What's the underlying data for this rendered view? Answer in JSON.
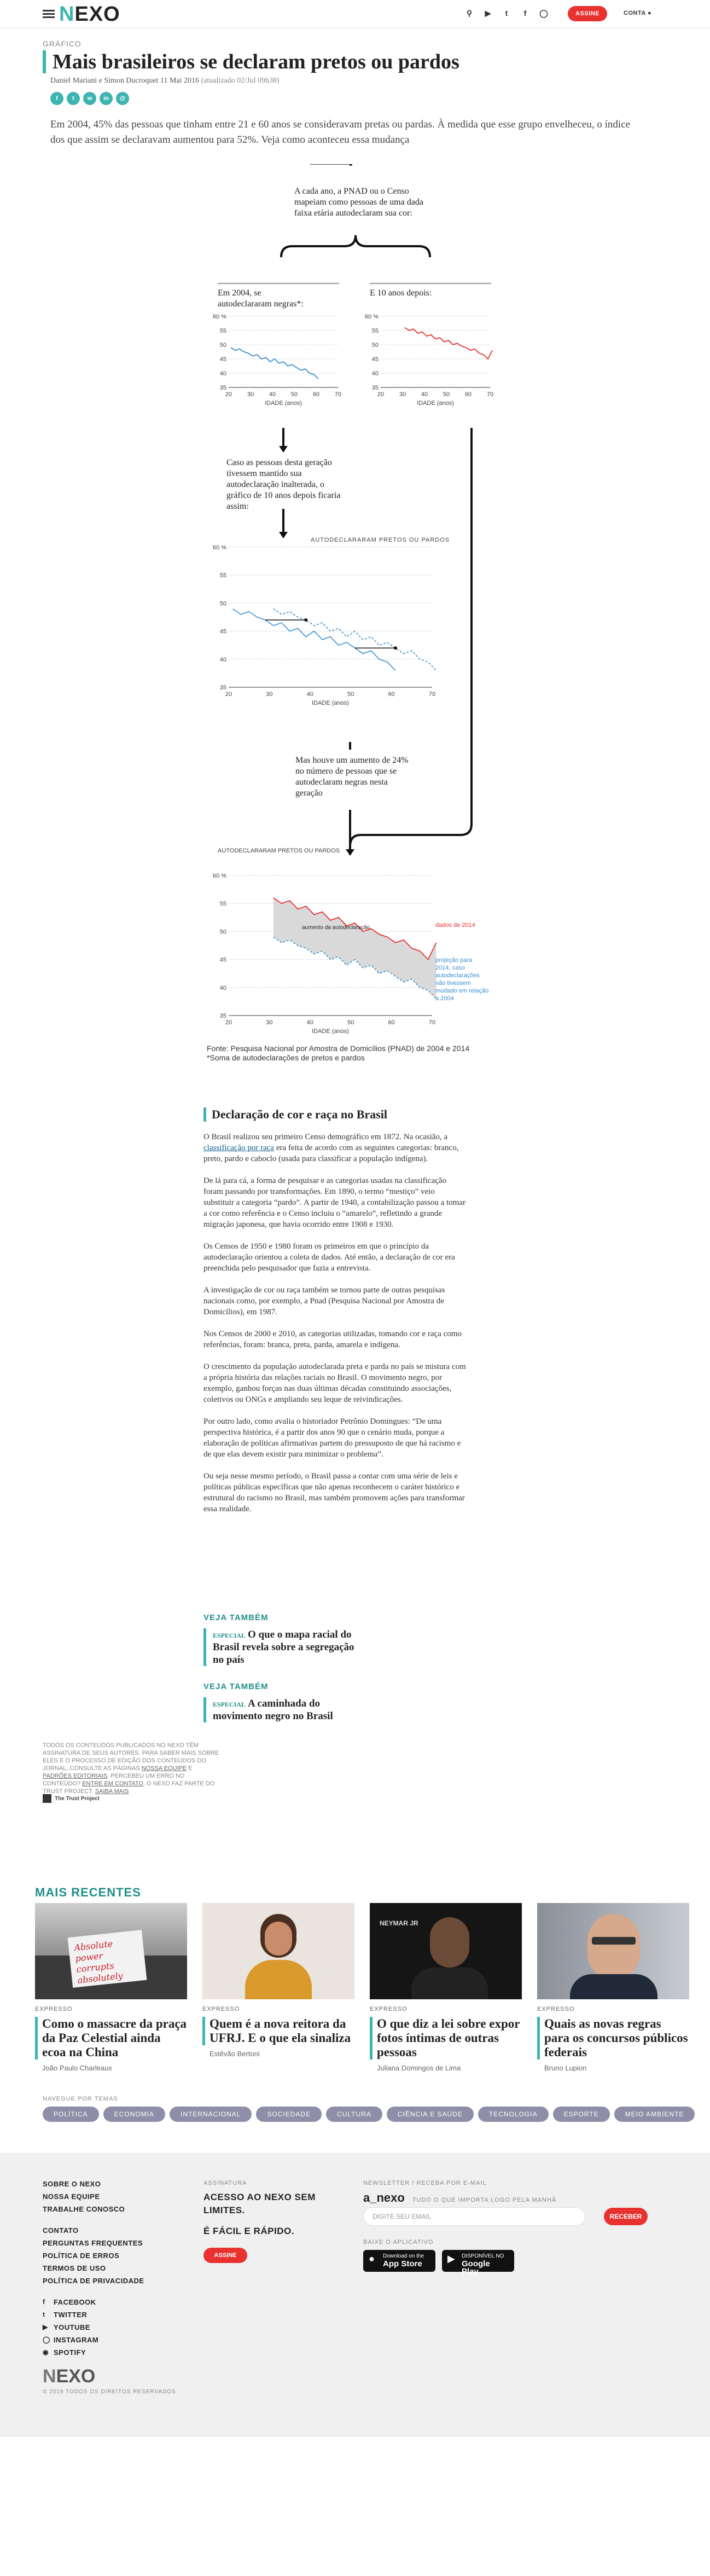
{
  "header": {
    "logo": "NEXO",
    "icons": [
      "search-icon",
      "youtube-icon",
      "twitter-icon",
      "facebook-icon",
      "instagram-icon"
    ],
    "subscribe_label": "ASSINE",
    "account_label": "CONTA"
  },
  "article": {
    "kicker": "GRÁFICO",
    "title": "Mais brasileiros se declaram pretos ou pardos",
    "authors": "Daniel Mariani e Simon Ducroquet",
    "date": "11 Mai 2016",
    "updated": "(atualizado 02/Jul 09h38)",
    "share_icons": [
      "facebook-icon",
      "twitter-icon",
      "whatsapp-icon",
      "linkedin-icon",
      "email-icon"
    ],
    "lede": "Em 2004, 45% das pessoas que tinham entre 21 e 60 anos se consideravam pretas ou pardas. À medida que esse grupo envelheceu, o índice dos que assim se declaravam aumentou para 52%. Veja como aconteceu essa mudança"
  },
  "infographic": {
    "intro": "A cada ano, a PNAD ou o Censo mapeiam como pessoas de uma dada faixa etária autodeclaram sua cor:",
    "panel_2004": "Em 2004, se autodeclararam negras*:",
    "panel_10y": "E 10 anos depois:",
    "hypo": "Caso as pessoas desta geração tivessem mantido sua autodeclaração inalterada, o gráfico de 10 anos depois ficaria assim:",
    "actual": "Mas houve um aumento de 24% no número de pessoas que se autodeclaram negras nesta geração",
    "chart_title_2": "AUTODECLARARAM PRETOS OU PARDOS",
    "chart_title_3": "AUTODECLARARAM PRETOS OU PARDOS",
    "xlabel": "IDADE (anos)",
    "band_label": "aumento da autodeclaração",
    "label_2014": "dados de 2014",
    "label_proj": "projeção para 2014, caso autodeclarações não tivessem mudado em relação a 2004",
    "source": "Fonte: Pesquisa Nacional por Amostra de Domicílios (PNAD) de 2004 e 2014",
    "footnote": "*Soma de autodeclarações de pretos e pardos"
  },
  "chart_data": [
    {
      "type": "line",
      "title": "Em 2004, se autodeclararam negras*:",
      "xlabel": "IDADE (anos)",
      "ylabel": "",
      "xlim": [
        20,
        70
      ],
      "ylim": [
        35,
        60
      ],
      "x_ticks": [
        20,
        30,
        40,
        50,
        60,
        70
      ],
      "y_ticks": [
        35,
        40,
        45,
        50,
        55,
        60
      ],
      "series": [
        {
          "name": "2004",
          "color": "#3a8fd0",
          "x": [
            21,
            23,
            25,
            27,
            29,
            31,
            33,
            35,
            37,
            39,
            41,
            43,
            45,
            47,
            49,
            51,
            53,
            55,
            57,
            59,
            61
          ],
          "y": [
            49,
            48,
            48.5,
            47.5,
            47,
            46,
            46.5,
            45,
            45.5,
            44,
            45,
            43.5,
            44,
            42.5,
            43,
            42,
            41,
            41.5,
            40,
            39.5,
            38
          ]
        }
      ]
    },
    {
      "type": "line",
      "title": "E 10 anos depois:",
      "xlabel": "IDADE (anos)",
      "ylabel": "",
      "xlim": [
        20,
        70
      ],
      "ylim": [
        35,
        60
      ],
      "x_ticks": [
        20,
        30,
        40,
        50,
        60,
        70
      ],
      "y_ticks": [
        35,
        40,
        45,
        50,
        55,
        60
      ],
      "series": [
        {
          "name": "2014",
          "color": "#e8322f",
          "x": [
            31,
            33,
            35,
            37,
            39,
            41,
            43,
            45,
            47,
            49,
            51,
            53,
            55,
            57,
            59,
            61,
            63,
            65,
            67,
            69,
            71
          ],
          "y": [
            56,
            55,
            55.5,
            54,
            54.5,
            53,
            53.5,
            52,
            52.5,
            51,
            51.5,
            50,
            50.5,
            49.5,
            49,
            48,
            48.5,
            47,
            46.5,
            45,
            48
          ]
        }
      ]
    },
    {
      "type": "line",
      "title": "AUTODECLARARAM PRETOS OU PARDOS",
      "xlabel": "IDADE (anos)",
      "ylabel": "",
      "xlim": [
        20,
        70
      ],
      "ylim": [
        35,
        60
      ],
      "x_ticks": [
        20,
        30,
        40,
        50,
        60,
        70
      ],
      "y_ticks": [
        35,
        40,
        45,
        50,
        55,
        60
      ],
      "series": [
        {
          "name": "2004",
          "color": "#3a8fd0",
          "x": [
            21,
            23,
            25,
            27,
            29,
            31,
            33,
            35,
            37,
            39,
            41,
            43,
            45,
            47,
            49,
            51,
            53,
            55,
            57,
            59,
            61
          ],
          "y": [
            49,
            48,
            48.5,
            47.5,
            47,
            46,
            46.5,
            45,
            45.5,
            44,
            45,
            43.5,
            44,
            42.5,
            43,
            42,
            41,
            41.5,
            40,
            39.5,
            38
          ]
        },
        {
          "name": "projeção 2014",
          "color": "#3a8fd0",
          "x": [
            31,
            33,
            35,
            37,
            39,
            41,
            43,
            45,
            47,
            49,
            51,
            53,
            55,
            57,
            59,
            61,
            63,
            65,
            67,
            69,
            71
          ],
          "y": [
            49,
            48,
            48.5,
            47.5,
            47,
            46,
            46.5,
            45,
            45.5,
            44,
            45,
            43.5,
            44,
            42.5,
            43,
            42,
            41,
            41.5,
            40,
            39.5,
            38
          ]
        }
      ]
    },
    {
      "type": "area",
      "title": "AUTODECLARARAM PRETOS OU PARDOS",
      "xlabel": "IDADE (anos)",
      "ylabel": "",
      "xlim": [
        20,
        70
      ],
      "ylim": [
        35,
        60
      ],
      "x_ticks": [
        20,
        30,
        40,
        50,
        60,
        70
      ],
      "y_ticks": [
        35,
        40,
        45,
        50,
        55,
        60
      ],
      "series": [
        {
          "name": "dados de 2014",
          "color": "#e8322f",
          "x": [
            31,
            33,
            35,
            37,
            39,
            41,
            43,
            45,
            47,
            49,
            51,
            53,
            55,
            57,
            59,
            61,
            63,
            65,
            67,
            69,
            71
          ],
          "y": [
            56,
            55,
            55.5,
            54,
            54.5,
            53,
            53.5,
            52,
            52.5,
            51,
            51.5,
            50,
            50.5,
            49.5,
            49,
            48,
            48.5,
            47,
            46.5,
            45,
            48
          ]
        },
        {
          "name": "projeção para 2014, caso autodeclarações não tivessem mudado em relação a 2004",
          "color": "#3a8fd0",
          "x": [
            31,
            33,
            35,
            37,
            39,
            41,
            43,
            45,
            47,
            49,
            51,
            53,
            55,
            57,
            59,
            61,
            63,
            65,
            67,
            69,
            71
          ],
          "y": [
            49,
            48,
            48.5,
            47.5,
            47,
            46,
            46.5,
            45,
            45.5,
            44,
            45,
            43.5,
            44,
            42.5,
            43,
            42,
            41,
            41.5,
            40,
            39.5,
            38
          ]
        }
      ],
      "annotations": [
        "aumento da autodeclaração"
      ]
    }
  ],
  "section": {
    "title": "Declaração de cor e raça no Brasil",
    "p1_a": "O Brasil realizou seu primeiro Censo demográfico em 1872. Na ocasião, a ",
    "p1_link": "classificação por raça",
    "p1_b": " era feita de acordo com as seguintes categorias: branco, preto, pardo e caboclo (usada para classificar a população indígena).",
    "p2": "De lá para cá, a forma de pesquisar e as categorias usadas na classificação foram passando por transformações. Em 1890, o termo “mestiço” veio substituir a categoria “pardo”. A partir de 1940, a contabilização passou a tomar a cor como referência e o Censo incluiu o “amarelo”, refletindo a grande migração japonesa, que havia ocorrido entre 1908 e 1930.",
    "p3": "Os Censos de 1950 e 1980 foram os primeiros em que o princípio da autodeclaração orientou a coleta de dados. Até então, a declaração de cor era preenchida pelo pesquisador que fazia a entrevista.",
    "p4": "A investigação de cor ou raça também se tornou parte de outras pesquisas nacionais como, por exemplo, a Pnad (Pesquisa Nacional por Amostra de Domicílios), em 1987.",
    "p5": "Nos Censos de 2000 e 2010, as categorias utilizadas, tomando cor e raça como referências, foram: branca, preta, parda, amarela e indígena.",
    "p6": "O crescimento da população autodeclarada preta e parda no país se mistura com a própria história das relações raciais no Brasil. O movimento negro, por exemplo, ganhou forças nas duas últimas décadas constituindo associações, coletivos ou ONGs e ampliando seu leque de reivindicações.",
    "p7": "Por outro lado, como avalia o historiador Petrônio Domingues: “De uma perspectiva histórica, é a partir dos anos 90 que o cenário muda, porque a elaboração de políticas afirmativas partem do pressuposto de que há racismo e de que elas devem existir para minimizar o problema”.",
    "p8": "Ou seja nesse mesmo período, o Brasil passa a contar com uma série de leis e políticas públicas específicas que não apenas reconhecem o caráter histórico e estrutural do racismo no Brasil, mas também promovem ações para transformar essa realidade."
  },
  "see_also": [
    {
      "label": "VEJA TAMBÉM",
      "tag": "ESPECIAL",
      "title": "O que o mapa racial do Brasil revela sobre a segregação no país"
    },
    {
      "label": "VEJA TAMBÉM",
      "tag": "ESPECIAL",
      "title": "A caminhada do movimento negro no Brasil"
    }
  ],
  "legal": {
    "text": "TODOS OS CONTEÚDOS PUBLICADOS NO NEXO TÊM ASSINATURA DE SEUS AUTORES. PARA SABER MAIS SOBRE ELES E O PROCESSO DE EDIÇÃO DOS CONTEÚDOS DO JORNAL, CONSULTE AS PÁGINAS ",
    "link1": "NOSSA EQUIPE",
    "mid1": " E ",
    "link2": "PADRÕES EDITORIAIS",
    "mid2": ". PERCEBEU UM ERRO NO CONTEÚDO? ",
    "link3": "ENTRE EM CONTATO",
    "mid3": ". O NEXO FAZ PARTE DO TRUST PROJECT. ",
    "link4": "SAIBA MAIS",
    "trust": "The Trust Project"
  },
  "recent": {
    "heading": "MAIS RECENTES",
    "items": [
      {
        "tag": "EXPRESSO",
        "title": "Como o massacre da praça da Paz Celestial ainda ecoa na China",
        "author": "João Paulo Charleaux",
        "img_text": "Absolute power corrupts absolutely"
      },
      {
        "tag": "EXPRESSO",
        "title": "Quem é a nova reitora da UFRJ. E o que ela sinaliza",
        "author": "Estêvão Bertoni"
      },
      {
        "tag": "EXPRESSO",
        "title": "O que diz a lei sobre expor fotos íntimas de outras pessoas",
        "author": "Juliana Domingos de Lima",
        "img_text": "NEYMAR JR"
      },
      {
        "tag": "EXPRESSO",
        "title": "Quais as novas regras para os concursos públicos federais",
        "author": "Bruno Lupion"
      }
    ]
  },
  "themes": {
    "label": "NAVEGUE POR TEMAS",
    "items": [
      "POLÍTICA",
      "ECONOMIA",
      "INTERNACIONAL",
      "SOCIEDADE",
      "CULTURA",
      "CIÊNCIA E SAÚDE",
      "TECNOLOGIA",
      "ESPORTE",
      "MEIO AMBIENTE"
    ]
  },
  "footer": {
    "links_a": [
      "SOBRE O NEXO",
      "NOSSA EQUIPE",
      "TRABALHE CONOSCO"
    ],
    "links_b": [
      "CONTATO",
      "PERGUNTAS FREQUENTES",
      "POLÍTICA DE ERROS",
      "TERMOS DE USO",
      "POLÍTICA DE PRIVACIDADE"
    ],
    "social": [
      "FACEBOOK",
      "TWITTER",
      "YOUTUBE",
      "INSTAGRAM",
      "SPOTIFY"
    ],
    "sub_label": "ASSINATURA",
    "sub_text1": "ACESSO AO NEXO SEM LIMITES.",
    "sub_text2": "É FÁCIL E RÁPIDO.",
    "sub_button": "ASSINE",
    "news_label": "NEWSLETTER / RECEBA POR E-MAIL",
    "news_name": "a_nexo",
    "news_desc": "TUDO O QUE IMPORTA LOGO PELA MANHÃ",
    "email_placeholder": "DIGITE SEU EMAIL",
    "receive_button": "RECEBER",
    "app_label": "BAIXE O APLICATIVO",
    "appstore_small": "Download on the",
    "appstore_big": "App Store",
    "gplay_small": "DISPONÍVEL NO",
    "gplay_big": "Google Play",
    "logo": "NEXO",
    "copyright": "© 2019 TODOS OS DIREITOS RESERVADOS"
  },
  "colors": {
    "accent": "#3db4b0",
    "red": "#e8322f",
    "blue": "#3a8fd0",
    "pill": "#8e8ea8"
  }
}
